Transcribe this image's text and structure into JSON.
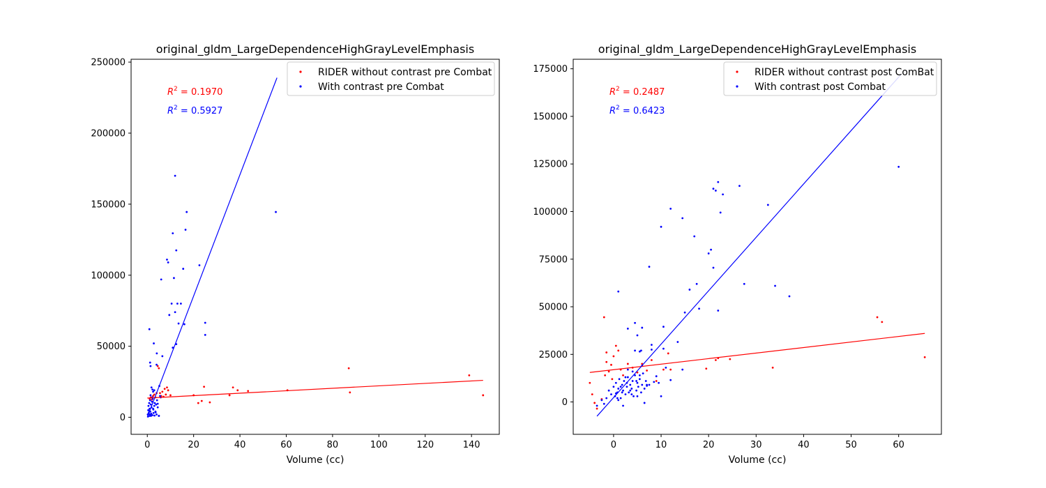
{
  "chart_data": [
    {
      "type": "scatter",
      "title": "original_gldm_LargeDependenceHighGrayLevelEmphasis",
      "xlabel": "Volume (cc)",
      "ylabel": "",
      "xlim": [
        -7,
        152
      ],
      "ylim": [
        -12000,
        252000
      ],
      "xticks": [
        0,
        20,
        40,
        60,
        80,
        100,
        120,
        140
      ],
      "yticks": [
        0,
        50000,
        100000,
        150000,
        200000,
        250000
      ],
      "legend_position": "upper right",
      "annotations": [
        {
          "text": "0.1970",
          "color": "#ff0000"
        },
        {
          "text": "0.5927",
          "color": "#0000ff"
        }
      ],
      "series": [
        {
          "name": "RIDER without contrast pre Combat",
          "color": "#ff0000",
          "x": [
            1.0,
            1.5,
            2.0,
            2.5,
            3.0,
            3.5,
            4.0,
            4.5,
            5.0,
            5.5,
            6.0,
            6.5,
            7.0,
            7.5,
            8.0,
            8.5,
            9.0,
            10.0,
            20.0,
            22.0,
            23.5,
            24.5,
            27.0,
            35.5,
            37.0,
            39.0,
            43.5,
            60.5,
            87.0,
            87.5,
            139.0,
            145.0
          ],
          "y": [
            13000,
            14000,
            12500,
            15000,
            16000,
            14000,
            17000,
            36000,
            34500,
            17000,
            15000,
            18000,
            14500,
            20000,
            16000,
            21000,
            19000,
            15500,
            15500,
            10000,
            11500,
            21500,
            10500,
            15500,
            21000,
            19000,
            18500,
            19000,
            34500,
            17500,
            29500,
            15500
          ]
        },
        {
          "name": "With contrast pre Combat",
          "color": "#0000ff",
          "x": [
            0.2,
            0.4,
            0.5,
            0.6,
            0.8,
            1.0,
            1.0,
            1.2,
            1.3,
            1.5,
            1.7,
            1.8,
            2.0,
            2.2,
            2.3,
            2.5,
            2.7,
            3.0,
            3.2,
            3.5,
            3.8,
            4.0,
            4.2,
            4.5,
            5.0,
            5.2,
            5.5,
            0.3,
            0.7,
            1.1,
            1.6,
            2.1,
            2.6,
            3.1,
            3.6,
            4.1,
            0.9,
            1.4,
            1.2,
            1.4,
            2.8,
            4.0,
            5.0,
            6.5,
            6.0,
            8.5,
            9.0,
            9.5,
            10.5,
            11.0,
            11.5,
            11.0,
            12.0,
            12.5,
            12.5,
            13.0,
            13.5,
            14.5,
            15.5,
            16.0,
            16.5,
            17.0,
            12.0,
            22.5,
            25.0,
            25.0,
            55.5,
            2.5,
            3.0,
            1.8,
            2.2,
            4.5,
            5.8
          ],
          "y": [
            2000,
            5000,
            8000,
            3000,
            10000,
            1000,
            6000,
            12000,
            4000,
            9000,
            2500,
            7000,
            11000,
            1500,
            13000,
            6000,
            3000,
            8000,
            10000,
            4000,
            9000,
            2000,
            12000,
            7000,
            1000,
            22000,
            15000,
            500,
            4500,
            2000,
            1000,
            14000,
            5500,
            1200,
            3500,
            45000,
            62000,
            36000,
            38500,
            15500,
            52000,
            37000,
            1000,
            43000,
            97000,
            111000,
            109000,
            72000,
            80000,
            129500,
            98000,
            49000,
            74000,
            117500,
            51500,
            80000,
            66000,
            80000,
            104500,
            65500,
            132000,
            144500,
            170000,
            107000,
            66500,
            58000,
            144500,
            18000,
            19000,
            21000,
            19500,
            9500,
            14000
          ]
        }
      ],
      "fit_lines": [
        {
          "color": "#ff0000",
          "x": [
            0,
            145
          ],
          "y": [
            13500,
            26000
          ]
        },
        {
          "color": "#0000ff",
          "x": [
            0,
            56
          ],
          "y": [
            0,
            239000
          ]
        }
      ]
    },
    {
      "type": "scatter",
      "title": "original_gldm_LargeDependenceHighGrayLevelEmphasis",
      "xlabel": "Volume (cc)",
      "ylabel": "",
      "xlim": [
        -8.5,
        69
      ],
      "ylim": [
        -17000,
        180000
      ],
      "xticks": [
        0,
        10,
        20,
        30,
        40,
        50,
        60
      ],
      "yticks": [
        0,
        25000,
        50000,
        75000,
        100000,
        125000,
        150000,
        175000
      ],
      "legend_position": "upper right",
      "annotations": [
        {
          "text": "0.2487",
          "color": "#ff0000"
        },
        {
          "text": "0.6423",
          "color": "#0000ff"
        }
      ],
      "series": [
        {
          "name": "RIDER without contrast post ComBat",
          "color": "#ff0000",
          "x": [
            -5.0,
            -4.5,
            -4.0,
            -3.5,
            -2.5,
            -2.0,
            -1.5,
            -1.5,
            -1.0,
            -0.5,
            0.0,
            0.5,
            1.0,
            1.5,
            2.0,
            3.0,
            4.0,
            5.0,
            6.0,
            7.0,
            8.0,
            9.0,
            10.5,
            11.5,
            12.0,
            19.5,
            21.5,
            22.0,
            24.5,
            33.5,
            55.5,
            56.5,
            65.5,
            -1.8,
            -0.3
          ],
          "y": [
            10000,
            4000,
            -500,
            -3500,
            1500,
            44500,
            26000,
            21000,
            16000,
            19500,
            24000,
            29500,
            27000,
            17000,
            14000,
            20000,
            18000,
            15500,
            20000,
            16500,
            22000,
            11000,
            17000,
            25500,
            17000,
            17500,
            22000,
            23000,
            22500,
            18000,
            44500,
            42000,
            23500,
            14000,
            12000
          ]
        },
        {
          "name": "With contrast post Combat",
          "color": "#0000ff",
          "x": [
            -3.5,
            -2.5,
            -2.0,
            -1.5,
            -1.0,
            -0.5,
            0.0,
            0.3,
            0.5,
            0.8,
            1.0,
            1.2,
            1.5,
            1.8,
            2.0,
            2.2,
            2.5,
            2.8,
            3.0,
            3.2,
            3.5,
            3.8,
            4.0,
            4.2,
            4.5,
            4.8,
            5.0,
            5.2,
            5.5,
            5.8,
            6.0,
            6.2,
            6.5,
            6.8,
            7.0,
            7.5,
            0.5,
            1.0,
            1.5,
            2.0,
            2.5,
            3.0,
            3.5,
            4.0,
            4.5,
            5.0,
            5.5,
            6.0,
            6.5,
            7.0,
            0.8,
            1.8,
            2.8,
            3.8,
            4.8,
            5.8,
            8.0,
            8.5,
            9.0,
            9.5,
            10.0,
            10.5,
            11.0,
            12.0,
            13.5,
            14.5,
            1.0,
            3.0,
            4.5,
            5.0,
            5.5,
            6.0,
            7.5,
            8.0,
            10.0,
            10.5,
            12.0,
            14.5,
            15.0,
            16.0,
            17.0,
            17.5,
            18.0,
            20.0,
            20.5,
            21.0,
            21.0,
            21.5,
            22.0,
            22.0,
            22.5,
            23.0,
            26.5,
            27.5,
            32.5,
            34.0,
            37.0,
            60.0
          ],
          "y": [
            -2000,
            1000,
            -1000,
            2000,
            6000,
            4000,
            8000,
            3000,
            10000,
            5000,
            7000,
            12000,
            2000,
            9000,
            6000,
            11000,
            4000,
            8000,
            13000,
            5000,
            9000,
            7000,
            11000,
            3000,
            14000,
            6000,
            10000,
            8000,
            12000,
            5000,
            9000,
            15000,
            7000,
            11000,
            9000,
            9000,
            4500,
            1000,
            8000,
            -2000,
            13000,
            17000,
            6000,
            16000,
            27000,
            3000,
            14000,
            19000,
            -500,
            8500,
            2000,
            5000,
            10000,
            4000,
            11000,
            27000,
            30000,
            10500,
            13500,
            10000,
            3000,
            28000,
            18000,
            11500,
            31500,
            17000,
            58000,
            38500,
            41500,
            35000,
            26500,
            39000,
            71000,
            27500,
            92000,
            39500,
            101500,
            96500,
            47000,
            59000,
            87000,
            62000,
            49000,
            78000,
            80000,
            70500,
            112000,
            111000,
            115500,
            48000,
            99500,
            109000,
            113500,
            62000,
            103500,
            61000,
            55500,
            123500
          ]
        }
      ],
      "fit_lines": [
        {
          "color": "#ff0000",
          "x": [
            -5,
            65.5
          ],
          "y": [
            15500,
            36000
          ]
        },
        {
          "color": "#0000ff",
          "x": [
            -3.5,
            60.5
          ],
          "y": [
            -7500,
            172000
          ]
        }
      ]
    }
  ]
}
